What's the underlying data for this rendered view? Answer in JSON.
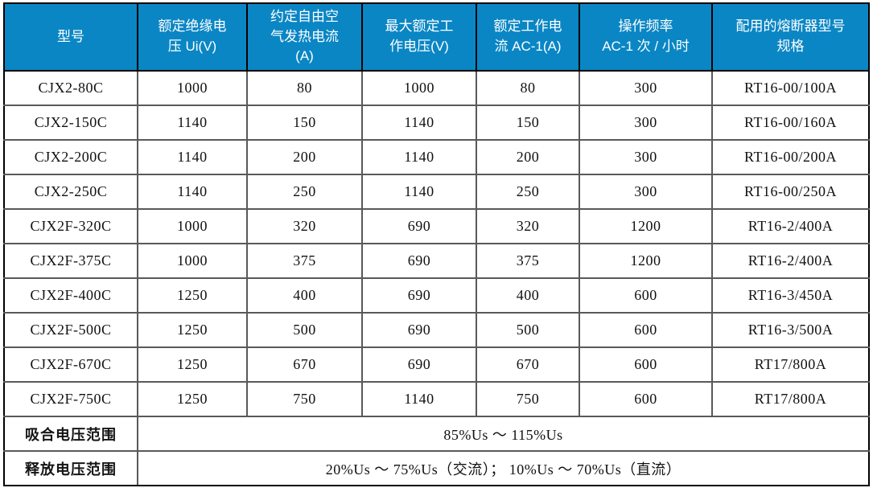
{
  "table": {
    "headers": [
      {
        "name": "model",
        "lines": [
          "型号"
        ]
      },
      {
        "name": "rated-insulation-voltage",
        "lines": [
          "额定绝缘电",
          "压 Ui(V)"
        ]
      },
      {
        "name": "free-air-thermal-current",
        "lines": [
          "约定自由空",
          "气发热电流",
          "(A)"
        ]
      },
      {
        "name": "max-rated-working-voltage",
        "lines": [
          "最大额定工",
          "作电压(V)"
        ]
      },
      {
        "name": "rated-working-current",
        "lines": [
          "额定工作电",
          "流 AC-1(A)"
        ]
      },
      {
        "name": "operating-frequency",
        "lines": [
          "操作频率",
          "AC-1 次 / 小时"
        ]
      },
      {
        "name": "matched-fuse-spec",
        "lines": [
          "配用的熔断器型号",
          "规格"
        ]
      }
    ],
    "rows": [
      [
        "CJX2-80C",
        "1000",
        "80",
        "1000",
        "80",
        "300",
        "RT16-00/100A"
      ],
      [
        "CJX2-150C",
        "1140",
        "150",
        "1140",
        "150",
        "300",
        "RT16-00/160A"
      ],
      [
        "CJX2-200C",
        "1140",
        "200",
        "1140",
        "200",
        "300",
        "RT16-00/200A"
      ],
      [
        "CJX2-250C",
        "1140",
        "250",
        "1140",
        "250",
        "300",
        "RT16-00/250A"
      ],
      [
        "CJX2F-320C",
        "1000",
        "320",
        "690",
        "320",
        "1200",
        "RT16-2/400A"
      ],
      [
        "CJX2F-375C",
        "1000",
        "375",
        "690",
        "375",
        "1200",
        "RT16-2/400A"
      ],
      [
        "CJX2F-400C",
        "1250",
        "400",
        "690",
        "400",
        "600",
        "RT16-3/450A"
      ],
      [
        "CJX2F-500C",
        "1250",
        "500",
        "690",
        "500",
        "600",
        "RT16-3/500A"
      ],
      [
        "CJX2F-670C",
        "1250",
        "670",
        "690",
        "670",
        "600",
        "RT17/800A"
      ],
      [
        "CJX2F-750C",
        "1250",
        "750",
        "1140",
        "750",
        "600",
        "RT17/800A"
      ]
    ],
    "footer_rows": [
      {
        "label": "吸合电压范围",
        "value": "85%Us ～ 115%Us"
      },
      {
        "label": "释放电压范围",
        "value": "20%Us ～ 75%Us（交流）； 10%Us ～ 70%Us（直流）"
      }
    ]
  },
  "colors": {
    "header_bg": "#0a86c4",
    "header_text": "#ffffff",
    "outer_border": "#000000",
    "grid_border": "#595959",
    "body_text": "#111111"
  }
}
